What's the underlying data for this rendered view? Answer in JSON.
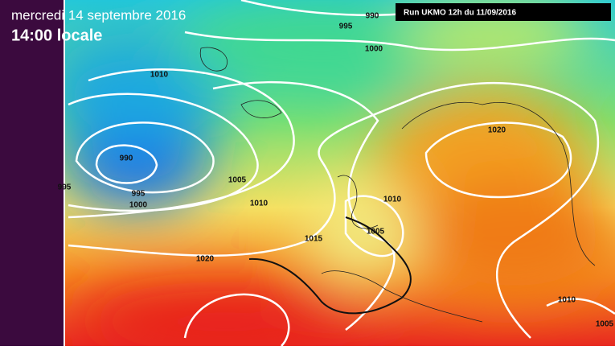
{
  "header": {
    "title": "mercredi 14 septembre 2016",
    "time": "14:00 locale",
    "run": "Run UKMO 12h du 11/09/2016"
  },
  "isobar_labels": [
    990,
    995,
    1000,
    1010,
    990,
    995,
    1000,
    1005,
    1010,
    995,
    1010,
    1005,
    1015,
    1020,
    1020,
    1010,
    1005
  ]
}
